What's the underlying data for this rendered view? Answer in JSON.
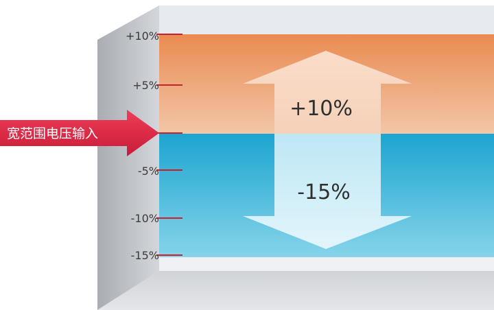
{
  "diagram": {
    "input_label": "宽范围电压输入",
    "up_label": "+10%",
    "down_label": "-15%",
    "ticks": [
      {
        "label": "+10%",
        "value": 10
      },
      {
        "label": "+5%",
        "value": 5
      },
      {
        "label": "-5%",
        "value": -5
      },
      {
        "label": "-10%",
        "value": -10
      },
      {
        "label": "-15%",
        "value": -15
      }
    ],
    "colors": {
      "orange_top": "#ea8c52",
      "orange_bottom": "#f1c3a4",
      "blue_top": "#1ea6d0",
      "blue_bottom": "#7fd2e8",
      "red_arrow": "#e12a45",
      "tick_mark": "#cc1f2d"
    }
  }
}
